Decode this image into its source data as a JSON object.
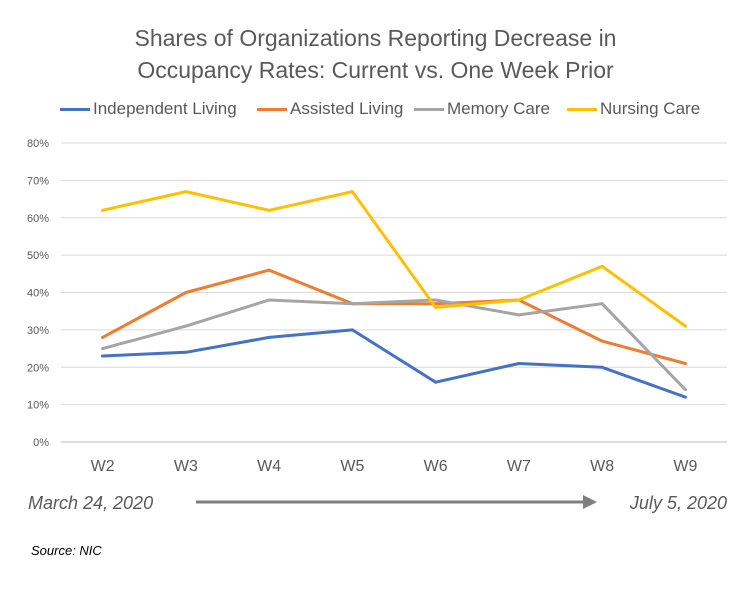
{
  "chart_data": {
    "type": "line",
    "title_line1": "Shares of Organizations Reporting Decrease in",
    "title_line2": "Occupancy Rates: Current vs. One Week Prior",
    "categories": [
      "W2",
      "W3",
      "W4",
      "W5",
      "W6",
      "W7",
      "W8",
      "W9"
    ],
    "y_ticks": [
      "0%",
      "10%",
      "20%",
      "30%",
      "40%",
      "50%",
      "60%",
      "70%",
      "80%"
    ],
    "ylim": [
      0,
      80
    ],
    "y_unit": "%",
    "grid": true,
    "legend_position": "top",
    "series": [
      {
        "name": "Independent Living",
        "color": "#4472C4",
        "values": [
          23,
          24,
          28,
          30,
          16,
          21,
          20,
          12
        ]
      },
      {
        "name": "Assisted Living",
        "color": "#ED7D31",
        "values": [
          28,
          40,
          46,
          37,
          37,
          38,
          27,
          21
        ]
      },
      {
        "name": "Memory Care",
        "color": "#A5A5A5",
        "values": [
          25,
          31,
          38,
          37,
          38,
          34,
          37,
          14
        ]
      },
      {
        "name": "Nursing Care",
        "color": "#FFC000",
        "values": [
          62,
          67,
          62,
          67,
          36,
          38,
          47,
          31
        ]
      }
    ]
  },
  "timeline": {
    "start_label": "March 24, 2020",
    "end_label": "July 5, 2020",
    "arrow_color": "#7F7F7F"
  },
  "source": "Source: NIC"
}
